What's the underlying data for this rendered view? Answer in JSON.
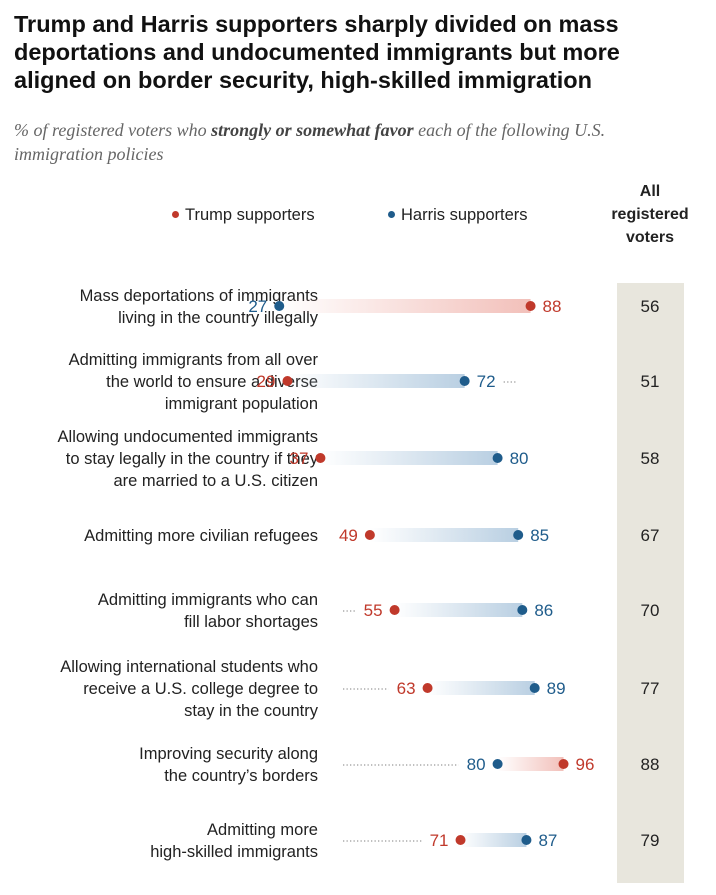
{
  "title": "Trump and Harris supporters sharply divided on mass deportations and undocumented immigrants but more aligned on border security, high-skilled immigration",
  "subtitle": {
    "prefix": "% of registered voters who ",
    "emphasis": "strongly or somewhat favor",
    "suffix": " each of the following U.S. immigration policies"
  },
  "legend": {
    "trump": "Trump supporters",
    "harris": "Harris supporters",
    "all_header": [
      "All",
      "registered",
      "voters"
    ]
  },
  "colors": {
    "trump": "#c0392b",
    "harris": "#1f5c8b",
    "all_column_bg": "#e8e6dd",
    "label_text": "#222222"
  },
  "chart_data": {
    "type": "dot-plot",
    "title": "Trump and Harris supporters sharply divided on mass deportations and undocumented immigrants but more aligned on border security, high-skilled immigration",
    "xlabel": "",
    "ylabel": "",
    "xlim": [
      0,
      100
    ],
    "series": [
      {
        "name": "Trump supporters",
        "key": "trump"
      },
      {
        "name": "Harris supporters",
        "key": "harris"
      },
      {
        "name": "All registered voters",
        "key": "all"
      }
    ],
    "rows": [
      {
        "label": [
          "Mass deportations of immigrants",
          "living in the country illegally"
        ],
        "trump": 88,
        "harris": 27,
        "all": 56
      },
      {
        "label": [
          "Admitting immigrants from all over",
          "the world to ensure a diverse",
          "immigrant population"
        ],
        "trump": 29,
        "harris": 72,
        "all": 51
      },
      {
        "label": [
          "Allowing undocumented immigrants",
          "to stay legally in the country if they",
          "are married to a U.S. citizen"
        ],
        "trump": 37,
        "harris": 80,
        "all": 58
      },
      {
        "label": [
          "Admitting more civilian refugees"
        ],
        "trump": 49,
        "harris": 85,
        "all": 67
      },
      {
        "label": [
          "Admitting immigrants who can",
          "fill labor shortages"
        ],
        "trump": 55,
        "harris": 86,
        "all": 70
      },
      {
        "label": [
          "Allowing international students who",
          "receive a U.S. college degree to",
          "stay in the country"
        ],
        "trump": 63,
        "harris": 89,
        "all": 77
      },
      {
        "label": [
          "Improving security along",
          "the country’s borders"
        ],
        "trump": 96,
        "harris": 80,
        "all": 88
      },
      {
        "label": [
          "Admitting more",
          "high-skilled immigrants"
        ],
        "trump": 71,
        "harris": 87,
        "all": 79
      }
    ]
  }
}
